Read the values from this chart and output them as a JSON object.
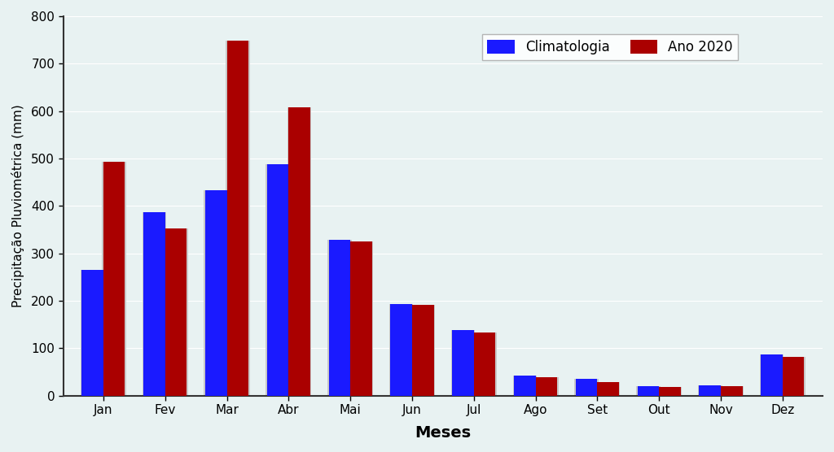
{
  "months": [
    "Jan",
    "Fev",
    "Mar",
    "Abr",
    "Mai",
    "Jun",
    "Jul",
    "Ago",
    "Set",
    "Out",
    "Nov",
    "Dez"
  ],
  "climatologia": [
    265,
    387,
    433,
    488,
    328,
    193,
    138,
    42,
    35,
    20,
    22,
    87
  ],
  "ano2020": [
    493,
    352,
    748,
    607,
    325,
    192,
    133,
    38,
    28,
    18,
    20,
    82
  ],
  "bar_color_clim": "#1a1aff",
  "bar_color_2020": "#aa0000",
  "bar_color_shadow": "#c8c8c8",
  "ylabel": "Precipitação Pluviométrica (mm)",
  "xlabel": "Meses",
  "legend_clim": "Climatologia",
  "legend_2020": "Ano 2020",
  "ylim": [
    0,
    800
  ],
  "yticks": [
    0,
    100,
    200,
    300,
    400,
    500,
    600,
    700,
    800
  ],
  "background_color": "#e8f2f2",
  "bar_width": 0.35,
  "shadow_extra": 0.04,
  "figsize": [
    10.24,
    5.56
  ],
  "dpi": 100
}
